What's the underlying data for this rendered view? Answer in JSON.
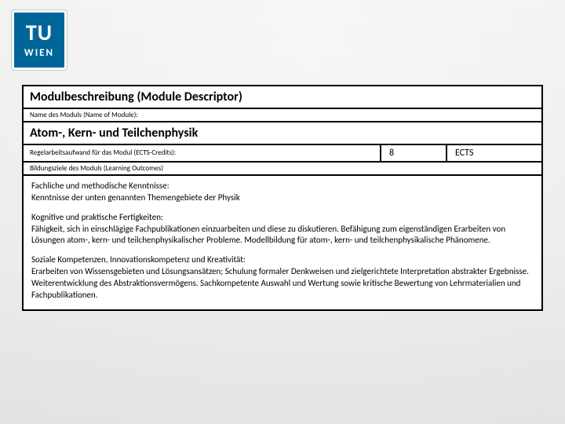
{
  "logo": {
    "top": "TU",
    "bottom": "WIEN",
    "bg": "#006699",
    "fg": "#ffffff"
  },
  "descriptor": {
    "header": "Modulbeschreibung (Module Descriptor)",
    "name_label": "Name des Moduls (Name of Module):",
    "module_name": "Atom-, Kern- und Teilchenphysik",
    "ects_label": "Regelarbeitsaufwand für das Modul (ECTS-Credits):",
    "ects_value": "8",
    "ects_unit": "ECTS",
    "outcomes_label": "Bildungsziele des Moduls (Learning Outcomes)",
    "sections": [
      {
        "title": "Fachliche und methodische Kenntnisse:",
        "text": "Kenntnisse der unten genannten Themengebiete der Physik"
      },
      {
        "title": "Kognitive und praktische Fertigkeiten:",
        "text": "Fähigkeit, sich in einschlägige Fachpublikationen einzuarbeiten und diese zu diskutieren. Befähigung zum eigenständigen Erarbeiten von Lösungen atom-, kern- und teilchenphysikalischer Probleme. Modellbildung für atom-, kern- und teilchenphysikalische Phänomene."
      },
      {
        "title": "Soziale Kompetenzen, Innovationskompetenz und Kreativität:",
        "text": "Erarbeiten von Wissensgebieten und Lösungsansätzen; Schulung formaler Denkweisen und zielgerichtete Interpretation abstrakter Ergebnisse. Weiterentwicklung des Abstraktionsvermögens. Sachkompetente Auswahl und Wertung sowie kritische Bewertung von Lehrmaterialien und Fachpublikationen."
      }
    ]
  },
  "style": {
    "border_color": "#000000",
    "row_bg": "#ffffff",
    "header_fontsize": 16,
    "label_fontsize": 9,
    "body_fontsize": 11
  }
}
